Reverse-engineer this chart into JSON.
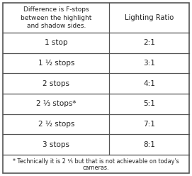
{
  "col1_header": "Difference is F-stops\nbetween the highlight\nand shadow sides.",
  "col2_header": "Lighting Ratio",
  "rows": [
    [
      "1 stop",
      "2:1"
    ],
    [
      "1 ½ stops",
      "3:1"
    ],
    [
      "2 stops",
      "4:1"
    ],
    [
      "2 ⅓ stops*",
      "5:1"
    ],
    [
      "2 ½ stops",
      "7:1"
    ],
    [
      "3 stops",
      "8:1"
    ]
  ],
  "row_col1_parts": [
    [
      "1 stop",
      ""
    ],
    [
      "1 ",
      "½",
      " stops"
    ],
    [
      "2 stops",
      ""
    ],
    [
      "2 ",
      "⅓",
      " stops*"
    ],
    [
      "2 ",
      "½",
      " stops"
    ],
    [
      "3 stops",
      ""
    ]
  ],
  "footnote_line1": "* Technically it is 2 ¹⁄₅ but that is not achievable on today's",
  "footnote_line2": "cameras.",
  "bg_color": "#ffffff",
  "border_color": "#555555",
  "text_color": "#222222",
  "header_fontsize": 6.5,
  "cell_fontsize": 7.5,
  "footnote_fontsize": 5.8,
  "col2_header_fontsize": 7.2
}
